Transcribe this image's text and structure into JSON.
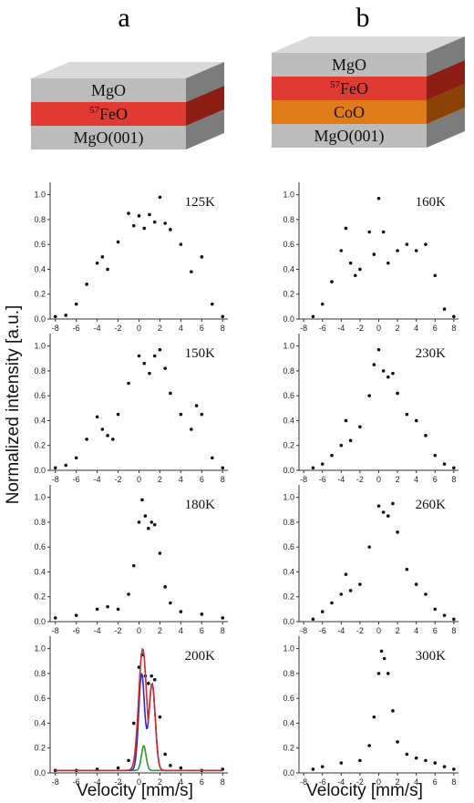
{
  "columns": [
    {
      "letter": "a",
      "layers": [
        {
          "label": "MgO",
          "sup": "",
          "top": "#d9d9d9",
          "front": "#bcbcbc",
          "side": "#7c7c7c"
        },
        {
          "label": "FeO",
          "sup": "57",
          "top": "#ee6b62",
          "front": "#e03a33",
          "side": "#8e1d14"
        },
        {
          "label": "MgO(001)",
          "sup": "",
          "top": "#d9d9d9",
          "front": "#bcbcbc",
          "side": "#7c7c7c"
        }
      ]
    },
    {
      "letter": "b",
      "layers": [
        {
          "label": "MgO",
          "sup": "",
          "top": "#d9d9d9",
          "front": "#bcbcbc",
          "side": "#7c7c7c"
        },
        {
          "label": "FeO",
          "sup": "57",
          "top": "#ee6b62",
          "front": "#e03a33",
          "side": "#8e1d14"
        },
        {
          "label": "CoO",
          "sup": "",
          "top": "#f2a050",
          "front": "#e07b16",
          "side": "#8a4305"
        },
        {
          "label": "MgO(001)",
          "sup": "",
          "top": "#d9d9d9",
          "front": "#bcbcbc",
          "side": "#7c7c7c"
        }
      ]
    }
  ],
  "axes": {
    "ylabel": "Normalized intensity [a.u.]",
    "xlabel": "Velocity [mm/s]",
    "xticks": [
      "-8",
      "-6",
      "-4",
      "-2",
      "0",
      "2",
      "4",
      "6",
      "8"
    ],
    "yticks": [
      "0.0",
      "0.2",
      "0.4",
      "0.6",
      "0.8",
      "1.0"
    ]
  },
  "chart_data": [
    {
      "type": "scatter",
      "column": "a",
      "temperature": "125K",
      "xlim": [
        -8.5,
        8.5
      ],
      "ylim": [
        0,
        1.1
      ],
      "series": [
        {
          "x": [
            -8,
            -7,
            -6,
            -5,
            -4,
            -3.5,
            -3,
            -2,
            -1,
            -0.5,
            0,
            0.5,
            1,
            1.5,
            2,
            2.5,
            3,
            4,
            5,
            6,
            7,
            8
          ],
          "values": [
            0.02,
            0.03,
            0.12,
            0.28,
            0.45,
            0.5,
            0.4,
            0.62,
            0.85,
            0.75,
            0.83,
            0.73,
            0.84,
            0.78,
            0.98,
            0.77,
            0.72,
            0.6,
            0.38,
            0.5,
            0.12,
            0.02
          ]
        }
      ]
    },
    {
      "type": "scatter",
      "column": "a",
      "temperature": "150K",
      "xlim": [
        -8.5,
        8.5
      ],
      "ylim": [
        0,
        1.1
      ],
      "series": [
        {
          "x": [
            -8,
            -7,
            -6,
            -5,
            -4,
            -3.5,
            -3,
            -2.5,
            -2,
            -1,
            0,
            0.5,
            1,
            1.5,
            2,
            2.5,
            3,
            4,
            5,
            5.5,
            6,
            7,
            8
          ],
          "values": [
            0.02,
            0.04,
            0.1,
            0.25,
            0.43,
            0.33,
            0.28,
            0.25,
            0.45,
            0.7,
            0.92,
            0.86,
            0.78,
            0.92,
            0.97,
            0.82,
            0.62,
            0.45,
            0.33,
            0.52,
            0.45,
            0.1,
            0.02
          ]
        }
      ]
    },
    {
      "type": "scatter",
      "column": "a",
      "temperature": "180K",
      "xlim": [
        -8.5,
        8.5
      ],
      "ylim": [
        0,
        1.1
      ],
      "series": [
        {
          "x": [
            -8,
            -6,
            -4,
            -3,
            -2,
            -1,
            -0.5,
            0,
            0.3,
            0.6,
            0.9,
            1.2,
            1.5,
            2,
            2.5,
            3,
            4,
            6,
            8
          ],
          "values": [
            0.03,
            0.05,
            0.1,
            0.12,
            0.1,
            0.22,
            0.45,
            0.8,
            0.98,
            0.85,
            0.75,
            0.8,
            0.78,
            0.55,
            0.28,
            0.15,
            0.08,
            0.06,
            0.03
          ]
        }
      ]
    },
    {
      "type": "scatter",
      "column": "a",
      "temperature": "200K",
      "xlim": [
        -8.5,
        8.5
      ],
      "ylim": [
        0,
        1.1
      ],
      "series": [
        {
          "x": [
            -8,
            -6,
            -4,
            -2,
            -1,
            -0.5,
            0,
            0.3,
            0.6,
            0.9,
            1.2,
            1.5,
            2,
            2.5,
            3,
            4,
            6,
            8
          ],
          "values": [
            0.02,
            0.02,
            0.03,
            0.04,
            0.1,
            0.4,
            0.85,
            0.95,
            0.78,
            0.72,
            0.78,
            0.75,
            0.45,
            0.15,
            0.06,
            0.04,
            0.02,
            0.03
          ]
        }
      ],
      "fit_lines": [
        {
          "color": "#d42a2a"
        },
        {
          "color": "#2a2ad0"
        },
        {
          "color": "#2a9a2a"
        }
      ]
    },
    {
      "type": "scatter",
      "column": "b",
      "temperature": "160K",
      "xlim": [
        -8.5,
        8.5
      ],
      "ylim": [
        0,
        1.1
      ],
      "series": [
        {
          "x": [
            -7,
            -6,
            -5,
            -4,
            -3.5,
            -3,
            -2.5,
            -2,
            -1,
            -0.5,
            0,
            0.5,
            1,
            2,
            3,
            4,
            5,
            6,
            7,
            8
          ],
          "values": [
            0.02,
            0.12,
            0.3,
            0.55,
            0.73,
            0.45,
            0.35,
            0.4,
            0.7,
            0.52,
            0.97,
            0.7,
            0.45,
            0.55,
            0.6,
            0.55,
            0.6,
            0.35,
            0.08,
            0.02
          ]
        }
      ]
    },
    {
      "type": "scatter",
      "column": "b",
      "temperature": "230K",
      "xlim": [
        -8.5,
        8.5
      ],
      "ylim": [
        0,
        1.1
      ],
      "series": [
        {
          "x": [
            -7,
            -6,
            -5,
            -4,
            -3.5,
            -3,
            -2,
            -1,
            -0.5,
            0,
            0.5,
            1,
            1.5,
            2,
            3,
            4,
            5,
            6,
            7,
            8
          ],
          "values": [
            0.02,
            0.05,
            0.12,
            0.2,
            0.4,
            0.24,
            0.35,
            0.6,
            0.85,
            0.97,
            0.8,
            0.75,
            0.78,
            0.62,
            0.45,
            0.4,
            0.28,
            0.12,
            0.05,
            0.02
          ]
        }
      ]
    },
    {
      "type": "scatter",
      "column": "b",
      "temperature": "260K",
      "xlim": [
        -8.5,
        8.5
      ],
      "ylim": [
        0,
        1.1
      ],
      "series": [
        {
          "x": [
            -7,
            -6,
            -5,
            -4,
            -3.5,
            -3,
            -2,
            -1,
            0,
            0.5,
            1,
            1.5,
            2,
            3,
            4,
            5,
            6,
            7,
            8
          ],
          "values": [
            0.02,
            0.08,
            0.15,
            0.22,
            0.38,
            0.25,
            0.3,
            0.6,
            0.93,
            0.88,
            0.85,
            0.95,
            0.72,
            0.42,
            0.3,
            0.22,
            0.1,
            0.05,
            0.02
          ]
        }
      ]
    },
    {
      "type": "scatter",
      "column": "b",
      "temperature": "300K",
      "xlim": [
        -8.5,
        8.5
      ],
      "ylim": [
        0,
        1.1
      ],
      "series": [
        {
          "x": [
            -7,
            -6,
            -4,
            -2,
            -1,
            -0.5,
            0,
            0.3,
            0.6,
            1,
            1.5,
            2,
            3,
            4,
            5,
            6,
            7,
            8
          ],
          "values": [
            0.03,
            0.05,
            0.08,
            0.1,
            0.22,
            0.45,
            0.8,
            0.98,
            0.92,
            0.8,
            0.5,
            0.25,
            0.15,
            0.12,
            0.1,
            0.08,
            0.05,
            0.03
          ]
        }
      ]
    }
  ]
}
